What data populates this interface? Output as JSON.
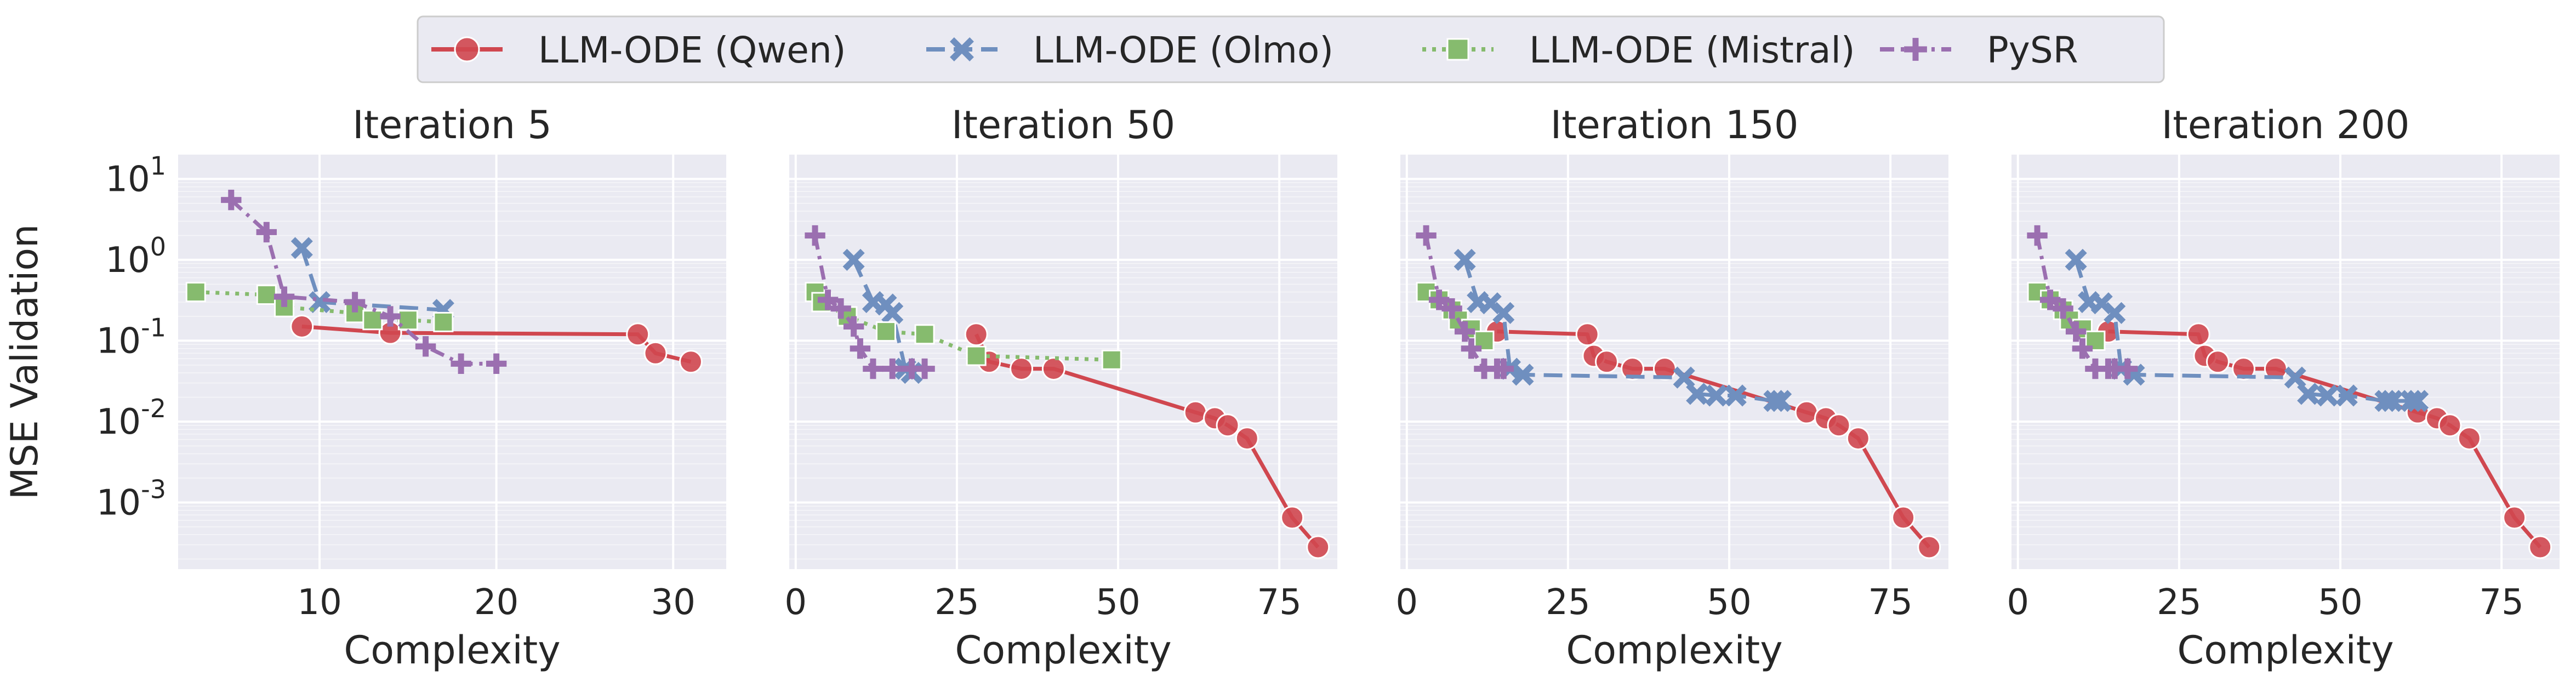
{
  "legend": {
    "placement": "top-center",
    "entries": [
      {
        "label": "LLM-ODE (Qwen)",
        "color": "#d0474f",
        "marker": "circle",
        "dash": "solid"
      },
      {
        "label": "LLM-ODE (Olmo)",
        "color": "#6f8fbf",
        "marker": "x",
        "dash": "dashed"
      },
      {
        "label": "LLM-ODE (Mistral)",
        "color": "#86bb6e",
        "marker": "square",
        "dash": "dotted"
      },
      {
        "label": "PySR",
        "color": "#9b6fb0",
        "marker": "plus",
        "dash": "dashdot"
      }
    ]
  },
  "shared_ylabel": "MSE Validation",
  "chart_data": [
    {
      "type": "line",
      "title": "Iteration 5",
      "xlabel": "Complexity",
      "ylabel": "MSE Validation",
      "yscale": "log",
      "xlim": [
        2,
        33
      ],
      "ylim": [
        0.00015,
        20
      ],
      "xticks": [
        10,
        20,
        30
      ],
      "yticks": [
        0.001,
        0.01,
        0.1,
        1,
        10
      ],
      "yticklabels": [
        "10^-3",
        "10^-2",
        "10^-1",
        "10^0",
        "10^1"
      ],
      "grid": true,
      "series": [
        {
          "name": "LLM-ODE (Qwen)",
          "x": [
            9,
            14,
            28,
            29,
            31
          ],
          "y": [
            0.15,
            0.125,
            0.12,
            0.07,
            0.055
          ]
        },
        {
          "name": "LLM-ODE (Olmo)",
          "x": [
            9,
            10,
            17
          ],
          "y": [
            1.4,
            0.3,
            0.24
          ]
        },
        {
          "name": "LLM-ODE (Mistral)",
          "x": [
            3,
            7,
            8,
            12,
            13,
            15,
            17
          ],
          "y": [
            0.4,
            0.37,
            0.26,
            0.22,
            0.18,
            0.18,
            0.17
          ]
        },
        {
          "name": "PySR",
          "x": [
            5,
            7,
            8,
            12,
            14,
            16,
            18,
            20
          ],
          "y": [
            5.5,
            2.2,
            0.35,
            0.3,
            0.2,
            0.085,
            0.052,
            0.052
          ]
        }
      ]
    },
    {
      "type": "line",
      "title": "Iteration 50",
      "xlabel": "Complexity",
      "yscale": "log",
      "xlim": [
        -1,
        84
      ],
      "ylim": [
        0.00015,
        20
      ],
      "xticks": [
        0,
        25,
        50,
        75
      ],
      "yticks": [
        0.001,
        0.01,
        0.1,
        1,
        10
      ],
      "grid": true,
      "series": [
        {
          "name": "LLM-ODE (Qwen)",
          "x": [
            28,
            30,
            35,
            40,
            62,
            65,
            67,
            70,
            77,
            81
          ],
          "y": [
            0.12,
            0.055,
            0.045,
            0.045,
            0.013,
            0.011,
            0.009,
            0.0062,
            0.00065,
            0.00028
          ]
        },
        {
          "name": "LLM-ODE (Olmo)",
          "x": [
            9,
            12,
            14,
            15,
            17,
            18
          ],
          "y": [
            1.0,
            0.3,
            0.28,
            0.22,
            0.045,
            0.04
          ]
        },
        {
          "name": "LLM-ODE (Mistral)",
          "x": [
            3,
            4,
            8,
            14,
            20,
            28,
            49
          ],
          "y": [
            0.4,
            0.3,
            0.2,
            0.13,
            0.12,
            0.065,
            0.058
          ]
        },
        {
          "name": "PySR",
          "x": [
            3,
            5,
            7,
            9,
            10,
            12,
            15,
            18,
            20
          ],
          "y": [
            2.0,
            0.32,
            0.25,
            0.15,
            0.08,
            0.045,
            0.045,
            0.045,
            0.045
          ]
        }
      ]
    },
    {
      "type": "line",
      "title": "Iteration 150",
      "xlabel": "Complexity",
      "yscale": "log",
      "xlim": [
        -1,
        84
      ],
      "ylim": [
        0.00015,
        20
      ],
      "xticks": [
        0,
        25,
        50,
        75
      ],
      "yticks": [
        0.001,
        0.01,
        0.1,
        1,
        10
      ],
      "grid": true,
      "series": [
        {
          "name": "LLM-ODE (Qwen)",
          "x": [
            14,
            28,
            29,
            31,
            35,
            40,
            62,
            65,
            67,
            70,
            77,
            81
          ],
          "y": [
            0.13,
            0.12,
            0.065,
            0.055,
            0.045,
            0.045,
            0.013,
            0.011,
            0.009,
            0.0062,
            0.00065,
            0.00028
          ]
        },
        {
          "name": "LLM-ODE (Olmo)",
          "x": [
            9,
            11,
            13,
            15,
            16,
            18,
            43,
            45,
            48,
            51,
            57,
            58
          ],
          "y": [
            1.0,
            0.3,
            0.29,
            0.22,
            0.045,
            0.038,
            0.035,
            0.022,
            0.021,
            0.021,
            0.018,
            0.018
          ]
        },
        {
          "name": "LLM-ODE (Mistral)",
          "x": [
            3,
            5,
            7,
            8,
            10,
            12
          ],
          "y": [
            0.4,
            0.32,
            0.24,
            0.18,
            0.14,
            0.1
          ]
        },
        {
          "name": "PySR",
          "x": [
            3,
            5,
            7,
            9,
            10,
            12,
            14,
            15
          ],
          "y": [
            2.0,
            0.32,
            0.25,
            0.13,
            0.08,
            0.045,
            0.045,
            0.045
          ]
        }
      ]
    },
    {
      "type": "line",
      "title": "Iteration 200",
      "xlabel": "Complexity",
      "yscale": "log",
      "xlim": [
        -1,
        84
      ],
      "ylim": [
        0.00015,
        20
      ],
      "xticks": [
        0,
        25,
        50,
        75
      ],
      "yticks": [
        0.001,
        0.01,
        0.1,
        1,
        10
      ],
      "grid": true,
      "series": [
        {
          "name": "LLM-ODE (Qwen)",
          "x": [
            14,
            28,
            29,
            31,
            35,
            40,
            62,
            65,
            67,
            70,
            77,
            81
          ],
          "y": [
            0.13,
            0.12,
            0.065,
            0.055,
            0.045,
            0.045,
            0.013,
            0.011,
            0.009,
            0.0062,
            0.00065,
            0.00028
          ]
        },
        {
          "name": "LLM-ODE (Olmo)",
          "x": [
            9,
            11,
            13,
            15,
            16,
            18,
            43,
            45,
            48,
            51,
            57,
            58,
            61,
            62
          ],
          "y": [
            1.0,
            0.3,
            0.29,
            0.22,
            0.045,
            0.038,
            0.035,
            0.022,
            0.021,
            0.021,
            0.018,
            0.018,
            0.018,
            0.018
          ]
        },
        {
          "name": "LLM-ODE (Mistral)",
          "x": [
            3,
            5,
            7,
            8,
            10,
            12
          ],
          "y": [
            0.4,
            0.32,
            0.24,
            0.18,
            0.14,
            0.1
          ]
        },
        {
          "name": "PySR",
          "x": [
            3,
            5,
            7,
            9,
            10,
            12,
            14,
            15,
            17
          ],
          "y": [
            2.0,
            0.32,
            0.25,
            0.13,
            0.08,
            0.045,
            0.045,
            0.045,
            0.045
          ]
        }
      ]
    }
  ]
}
